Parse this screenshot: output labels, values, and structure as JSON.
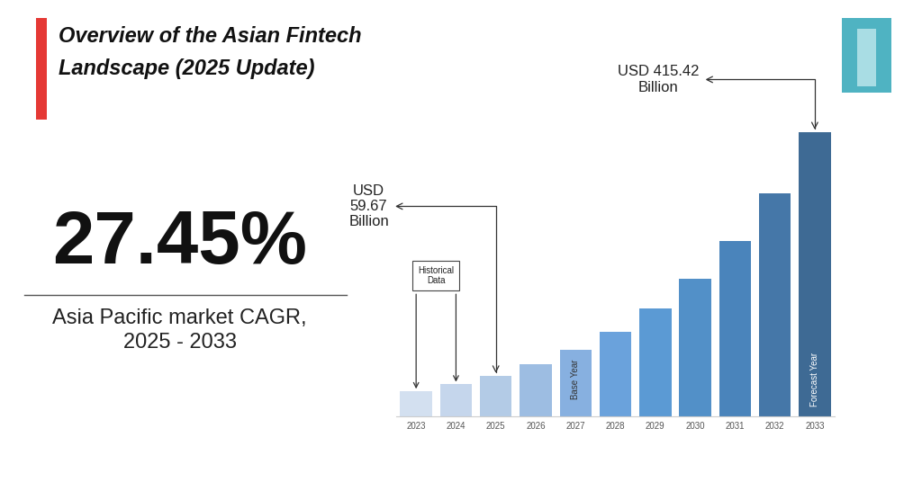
{
  "chart_data": {
    "type": "bar",
    "title": "Overview of the Asian Fintech Landscape (2025 Update)",
    "headline": "27.45%",
    "subtitle": "Asia Pacific market CAGR, 2025 - 2033",
    "categories": [
      "2023",
      "2024",
      "2025",
      "2026",
      "2027",
      "2028",
      "2029",
      "2030",
      "2031",
      "2032",
      "2033"
    ],
    "values": [
      36.7,
      46.8,
      59.67,
      76.05,
      96.93,
      123.5,
      157.4,
      200.7,
      255.8,
      326.0,
      415.42
    ],
    "colors": [
      "#d3e0f0",
      "#c5d6ec",
      "#b3cbe6",
      "#9dbde2",
      "#87b0e0",
      "#6aa2dc",
      "#5b9ad4",
      "#5290c8",
      "#4a84bb",
      "#4577a8",
      "#3e6a94"
    ],
    "tick_labels": "x",
    "annotations": [
      {
        "text": "USD 59.67 Billion",
        "category": "2025"
      },
      {
        "text": "USD 415.42 Billion",
        "category": "2033"
      }
    ],
    "bracket": {
      "text": "Historical Data",
      "categories": [
        "2023",
        "2024"
      ]
    },
    "bar_notes": [
      {
        "text": "Base Year",
        "category": "2027"
      },
      {
        "text": "Forecast Year",
        "category": "2033"
      }
    ]
  }
}
